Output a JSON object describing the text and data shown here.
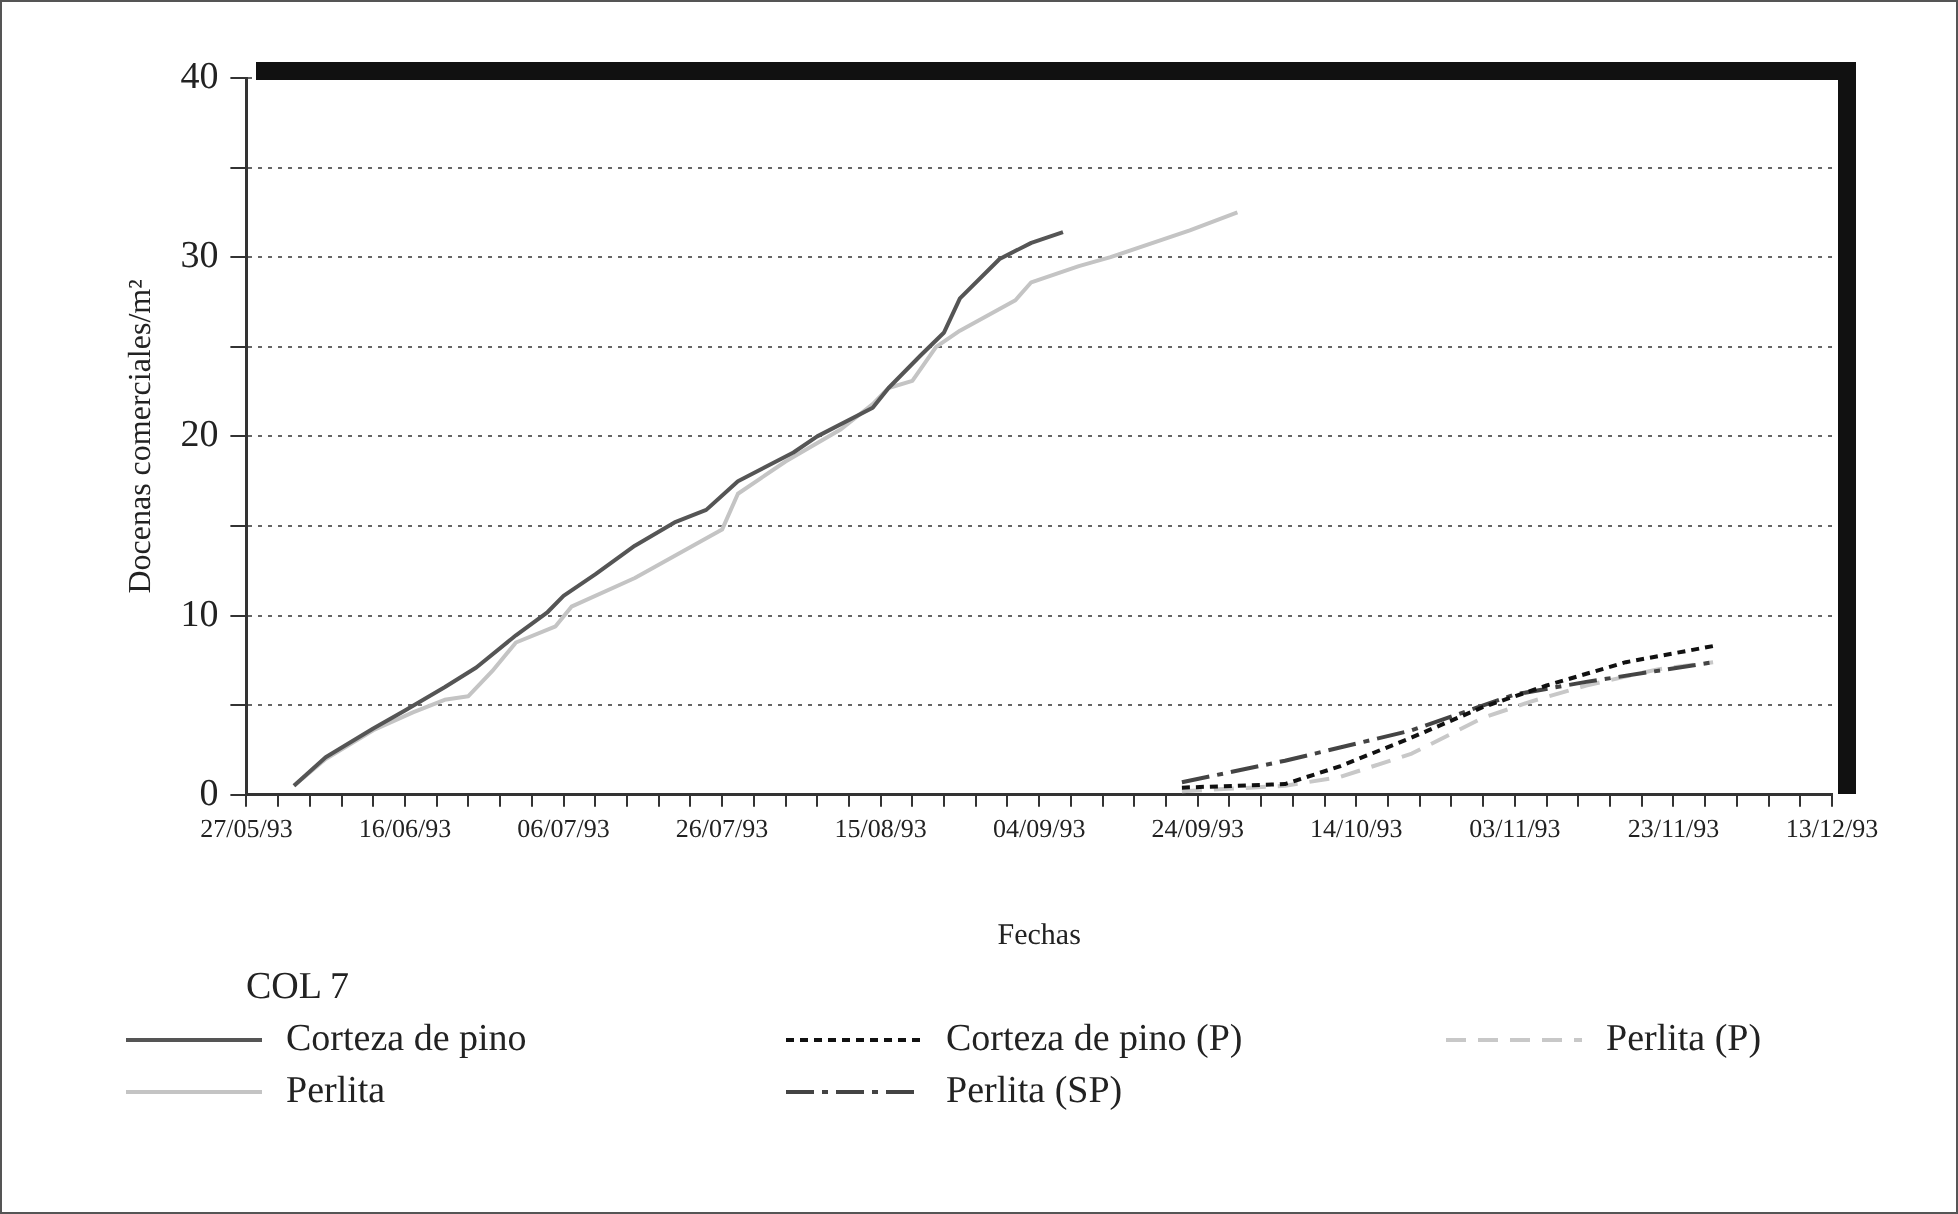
{
  "chart_data": {
    "type": "line",
    "xlabel": "Fechas",
    "ylabel": "Docenas comerciales/m²",
    "legend_title": "COL 7",
    "legend": "bottom",
    "grid": "y",
    "marker": "none",
    "xlim": [
      "1993-05-27",
      "1993-12-13"
    ],
    "xticks": [
      {
        "value": "1993-05-27",
        "label": "27/05/93"
      },
      {
        "value": "1993-05-31",
        "label": null
      },
      {
        "value": "1993-06-04",
        "label": null
      },
      {
        "value": "1993-06-08",
        "label": null
      },
      {
        "value": "1993-06-12",
        "label": null
      },
      {
        "value": "1993-06-16",
        "label": "16/06/93"
      },
      {
        "value": "1993-06-20",
        "label": null
      },
      {
        "value": "1993-06-24",
        "label": null
      },
      {
        "value": "1993-06-28",
        "label": null
      },
      {
        "value": "1993-07-02",
        "label": null
      },
      {
        "value": "1993-07-06",
        "label": "06/07/93"
      },
      {
        "value": "1993-07-10",
        "label": null
      },
      {
        "value": "1993-07-14",
        "label": null
      },
      {
        "value": "1993-07-18",
        "label": null
      },
      {
        "value": "1993-07-22",
        "label": null
      },
      {
        "value": "1993-07-26",
        "label": "26/07/93"
      },
      {
        "value": "1993-07-30",
        "label": null
      },
      {
        "value": "1993-08-03",
        "label": null
      },
      {
        "value": "1993-08-07",
        "label": null
      },
      {
        "value": "1993-08-11",
        "label": null
      },
      {
        "value": "1993-08-15",
        "label": "15/08/93"
      },
      {
        "value": "1993-08-19",
        "label": null
      },
      {
        "value": "1993-08-23",
        "label": null
      },
      {
        "value": "1993-08-27",
        "label": null
      },
      {
        "value": "1993-08-31",
        "label": null
      },
      {
        "value": "1993-09-04",
        "label": "04/09/93"
      },
      {
        "value": "1993-09-08",
        "label": null
      },
      {
        "value": "1993-09-12",
        "label": null
      },
      {
        "value": "1993-09-16",
        "label": null
      },
      {
        "value": "1993-09-20",
        "label": null
      },
      {
        "value": "1993-09-24",
        "label": "24/09/93"
      },
      {
        "value": "1993-09-28",
        "label": null
      },
      {
        "value": "1993-10-02",
        "label": null
      },
      {
        "value": "1993-10-06",
        "label": null
      },
      {
        "value": "1993-10-10",
        "label": null
      },
      {
        "value": "1993-10-14",
        "label": "14/10/93"
      },
      {
        "value": "1993-10-18",
        "label": null
      },
      {
        "value": "1993-10-22",
        "label": null
      },
      {
        "value": "1993-10-26",
        "label": null
      },
      {
        "value": "1993-10-30",
        "label": null
      },
      {
        "value": "1993-11-03",
        "label": "03/11/93"
      },
      {
        "value": "1993-11-07",
        "label": null
      },
      {
        "value": "1993-11-11",
        "label": null
      },
      {
        "value": "1993-11-15",
        "label": null
      },
      {
        "value": "1993-11-19",
        "label": null
      },
      {
        "value": "1993-11-23",
        "label": "23/11/93"
      },
      {
        "value": "1993-11-27",
        "label": null
      },
      {
        "value": "1993-12-01",
        "label": null
      },
      {
        "value": "1993-12-05",
        "label": null
      },
      {
        "value": "1993-12-09",
        "label": null
      },
      {
        "value": "1993-12-13",
        "label": "13/12/93"
      }
    ],
    "ylim": [
      0,
      40
    ],
    "yticks": [
      0,
      {
        "value": 5,
        "label": null
      },
      10,
      {
        "value": 15,
        "label": null
      },
      20,
      {
        "value": 25,
        "label": null
      },
      30,
      {
        "value": 35,
        "label": null
      },
      40
    ],
    "series": [
      {
        "name": "Corteza de pino",
        "color": "#555555",
        "line_style": "solid",
        "x": [
          "1993-06-02",
          "1993-06-06",
          "1993-06-12",
          "1993-06-16",
          "1993-06-21",
          "1993-06-25",
          "1993-06-30",
          "1993-07-04",
          "1993-07-06",
          "1993-07-10",
          "1993-07-15",
          "1993-07-20",
          "1993-07-24",
          "1993-07-28",
          "1993-08-04",
          "1993-08-07",
          "1993-08-14",
          "1993-08-16",
          "1993-08-20",
          "1993-08-23",
          "1993-08-25",
          "1993-08-30",
          "1993-09-03",
          "1993-09-07"
        ],
        "values": [
          0.5,
          2.1,
          3.7,
          4.7,
          6.0,
          7.1,
          8.9,
          10.2,
          11.1,
          12.3,
          13.9,
          15.2,
          15.9,
          17.5,
          19.1,
          20.0,
          21.6,
          22.7,
          24.5,
          25.8,
          27.7,
          29.9,
          30.8,
          31.4
        ]
      },
      {
        "name": "Perlita",
        "color": "#c4c4c4",
        "line_style": "solid",
        "x": [
          "1993-06-02",
          "1993-06-06",
          "1993-06-12",
          "1993-06-17",
          "1993-06-21",
          "1993-06-24",
          "1993-06-27",
          "1993-06-30",
          "1993-07-05",
          "1993-07-07",
          "1993-07-15",
          "1993-07-26",
          "1993-07-28",
          "1993-08-03",
          "1993-08-10",
          "1993-08-14",
          "1993-08-16",
          "1993-08-19",
          "1993-08-22",
          "1993-08-25",
          "1993-09-01",
          "1993-09-03",
          "1993-09-09",
          "1993-09-13",
          "1993-09-23",
          "1993-09-29"
        ],
        "values": [
          0.5,
          2.0,
          3.6,
          4.6,
          5.3,
          5.5,
          6.9,
          8.5,
          9.4,
          10.5,
          12.1,
          14.8,
          16.8,
          18.6,
          20.4,
          21.8,
          22.7,
          23.1,
          25.0,
          25.9,
          27.6,
          28.6,
          29.5,
          30.0,
          31.5,
          32.5
        ]
      },
      {
        "name": "Corteza de pino (P)",
        "color": "#111111",
        "line_style": "dotted",
        "x": [
          "1993-09-22",
          "1993-10-05",
          "1993-10-12",
          "1993-10-21",
          "1993-10-30",
          "1993-11-07",
          "1993-11-17",
          "1993-11-28"
        ],
        "values": [
          0.4,
          0.6,
          1.6,
          3.2,
          4.9,
          6.1,
          7.4,
          8.3
        ]
      },
      {
        "name": "Perlita (SP)",
        "color": "#444444",
        "line_style": "dashdot",
        "x": [
          "1993-09-22",
          "1993-10-05",
          "1993-10-21",
          "1993-11-03",
          "1993-11-12",
          "1993-11-28"
        ],
        "values": [
          0.7,
          1.9,
          3.6,
          5.6,
          6.3,
          7.4
        ]
      },
      {
        "name": "Perlita (P)",
        "color": "#c8c8c8",
        "line_style": "dashed",
        "x": [
          "1993-09-22",
          "1993-10-05",
          "1993-10-12",
          "1993-10-21",
          "1993-10-30",
          "1993-11-05",
          "1993-11-12",
          "1993-11-21",
          "1993-11-28"
        ],
        "values": [
          0.2,
          0.5,
          1.0,
          2.3,
          4.3,
          5.2,
          6.1,
          7.0,
          7.4
        ]
      }
    ]
  }
}
